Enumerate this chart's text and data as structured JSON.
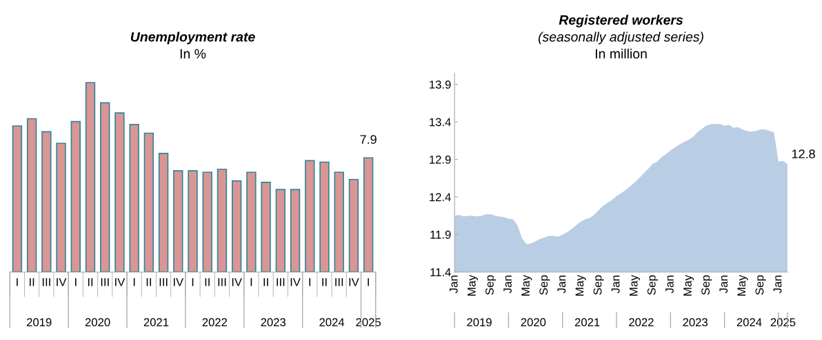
{
  "chart_data": [
    {
      "type": "bar",
      "title": "Unemployment rate",
      "subtitle": "In %",
      "categories": [
        "I",
        "II",
        "III",
        "IV",
        "I",
        "II",
        "III",
        "IV",
        "I",
        "II",
        "III",
        "IV",
        "I",
        "II",
        "III",
        "IV",
        "I",
        "II",
        "III",
        "IV",
        "I",
        "II",
        "III",
        "IV",
        "I"
      ],
      "values": [
        10.1,
        10.6,
        9.7,
        8.9,
        10.4,
        13.1,
        11.7,
        11.0,
        10.2,
        9.6,
        8.2,
        7.0,
        7.0,
        6.9,
        7.1,
        6.3,
        6.9,
        6.2,
        5.7,
        5.7,
        7.7,
        7.6,
        6.9,
        6.4,
        7.9
      ],
      "value_labels": [
        null,
        null,
        null,
        null,
        null,
        null,
        null,
        null,
        null,
        null,
        null,
        null,
        null,
        null,
        null,
        null,
        null,
        null,
        null,
        null,
        null,
        null,
        null,
        null,
        "7.9"
      ],
      "color": "#d99694",
      "grid": false,
      "legend": false,
      "annotations": [
        "2019",
        "2020",
        "2021",
        "2022",
        "2023",
        "2024",
        "2025"
      ]
    },
    {
      "type": "area",
      "title": "Registered workers",
      "subtitle": "(seasonally adjusted series)\nIn million",
      "categories": [
        "Jan",
        null,
        null,
        null,
        "May",
        null,
        null,
        null,
        "Sep",
        null,
        null,
        null,
        "Jan",
        null,
        null,
        null,
        "May",
        null,
        null,
        null,
        "Sep",
        null,
        null,
        null,
        "Jan",
        null,
        null,
        null,
        "May",
        null,
        null,
        null,
        "Sep",
        null,
        null,
        null,
        "Jan",
        null,
        null,
        null,
        "May",
        null,
        null,
        null,
        "Sep",
        null,
        null,
        null,
        "Jan",
        null,
        null,
        null,
        "May",
        null,
        null,
        null,
        "Sep",
        null,
        null,
        null,
        "Jan",
        null,
        null,
        null,
        "May",
        null,
        null,
        null,
        "Sep",
        null,
        null,
        null,
        "Jan",
        null,
        null
      ],
      "series": [
        {
          "color": "#b9cde5",
          "values": [
            12.15,
            12.16,
            12.14,
            12.15,
            12.15,
            12.14,
            12.15,
            12.17,
            12.17,
            12.15,
            12.14,
            12.13,
            12.11,
            12.1,
            12.02,
            11.85,
            11.77,
            11.78,
            11.81,
            11.84,
            11.86,
            11.88,
            11.88,
            11.87,
            11.9,
            11.93,
            11.97,
            12.02,
            12.07,
            12.1,
            12.12,
            12.16,
            12.22,
            12.28,
            12.32,
            12.36,
            12.41,
            12.45,
            12.49,
            12.54,
            12.59,
            12.65,
            12.71,
            12.77,
            12.84,
            12.87,
            12.93,
            12.97,
            13.02,
            13.06,
            13.1,
            13.13,
            13.16,
            13.2,
            13.26,
            13.31,
            13.35,
            13.37,
            13.37,
            13.37,
            13.35,
            13.36,
            13.32,
            13.33,
            13.3,
            13.28,
            13.27,
            13.28,
            13.3,
            13.3,
            13.28,
            13.26,
            12.87,
            12.88,
            12.84
          ],
          "value_labels": [
            null,
            null,
            null,
            null,
            null,
            null,
            null,
            null,
            null,
            null,
            null,
            null,
            null,
            null,
            null,
            null,
            null,
            null,
            null,
            null,
            null,
            null,
            null,
            null,
            null,
            null,
            null,
            null,
            null,
            null,
            null,
            null,
            null,
            null,
            null,
            null,
            null,
            null,
            null,
            null,
            null,
            null,
            null,
            null,
            null,
            null,
            null,
            null,
            null,
            null,
            null,
            null,
            null,
            null,
            null,
            null,
            null,
            null,
            null,
            null,
            null,
            null,
            null,
            null,
            null,
            null,
            null,
            null,
            null,
            null,
            null,
            null,
            null,
            null,
            "12.8"
          ]
        }
      ],
      "ylim": [
        11.4,
        14.05
      ],
      "yticks": [
        11.4,
        11.9,
        12.4,
        12.9,
        13.4,
        13.9
      ],
      "grid": false,
      "legend": false,
      "annotations": [
        "2019",
        "2020",
        "2021",
        "2022",
        "2023",
        "2024",
        "2025"
      ]
    }
  ]
}
